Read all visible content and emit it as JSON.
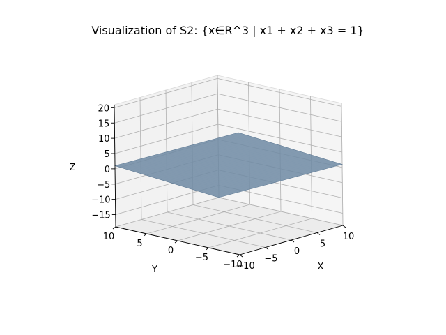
{
  "chart_data": {
    "type": "surface3d",
    "title": "Visualization of S2: {x∈R^3 | x1 + x2 + x3 = 1}",
    "xlabel": "X",
    "ylabel": "Y",
    "zlabel": "Z",
    "xlim": [
      -10,
      10
    ],
    "ylim": [
      -10,
      10
    ],
    "zlim": [
      -19,
      21
    ],
    "x_ticks": [
      -10,
      -5,
      0,
      5,
      10
    ],
    "y_ticks": [
      -10,
      -5,
      0,
      5,
      10
    ],
    "z_ticks": [
      -15,
      -10,
      -5,
      0,
      5,
      10,
      15,
      20
    ],
    "surface": {
      "equation": "x1 + x2 + x3 = 1",
      "corners": [
        {
          "x": -10,
          "y": -10,
          "z": 21
        },
        {
          "x": 10,
          "y": -10,
          "z": 1
        },
        {
          "x": 10,
          "y": 10,
          "z": -19
        },
        {
          "x": -10,
          "y": 10,
          "z": 1
        }
      ],
      "color": "#6f8aa3"
    },
    "grid": true,
    "pane_color": "#f2f2f2"
  }
}
